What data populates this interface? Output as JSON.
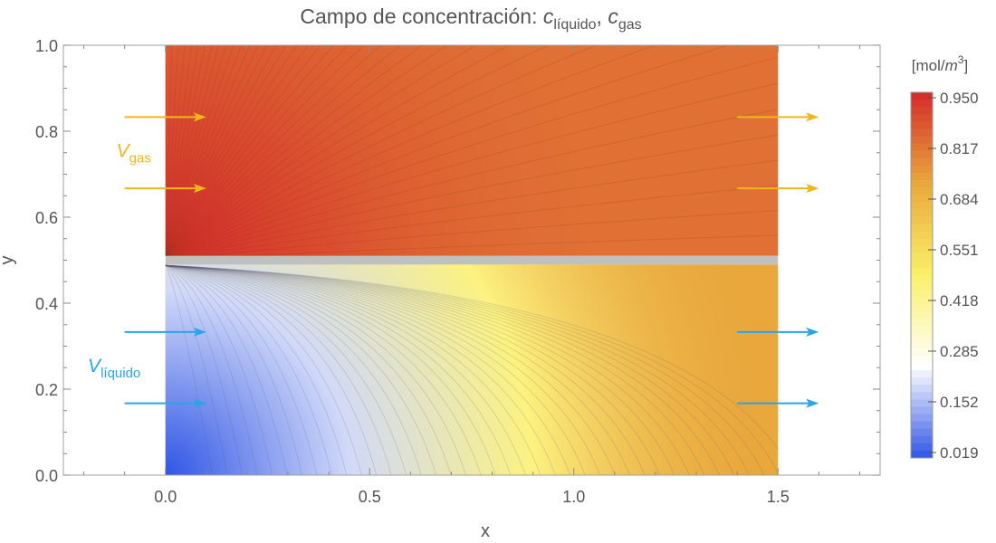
{
  "chart_data": {
    "type": "heatmap",
    "title": {
      "text": "Campo de concentración: ",
      "term1_main": "c",
      "term1_sub": "líquido",
      "separator": ", ",
      "term2_main": "c",
      "term2_sub": "gas"
    },
    "xlabel": "x",
    "ylabel": "y",
    "xlim": [
      -0.25,
      1.75
    ],
    "ylim": [
      0.0,
      1.0
    ],
    "x_ticks": [
      {
        "value": 0.0,
        "label": "0.0"
      },
      {
        "value": 0.5,
        "label": "0.5"
      },
      {
        "value": 1.0,
        "label": "1.0"
      },
      {
        "value": 1.5,
        "label": "1.5"
      }
    ],
    "y_ticks": [
      {
        "value": 0.0,
        "label": "0.0"
      },
      {
        "value": 0.2,
        "label": "0.2"
      },
      {
        "value": 0.4,
        "label": "0.4"
      },
      {
        "value": 0.6,
        "label": "0.6"
      },
      {
        "value": 0.8,
        "label": "0.8"
      },
      {
        "value": 1.0,
        "label": "1.0"
      }
    ],
    "domain": {
      "x": [
        0.0,
        1.5
      ],
      "y": [
        0.0,
        1.0
      ]
    },
    "membrane": {
      "y": [
        0.49,
        0.51
      ],
      "color": "#c0c0c0"
    },
    "regions": [
      {
        "name": "gas",
        "y_range": [
          0.51,
          1.0
        ],
        "min_value": 0.82,
        "max_value": 0.95
      },
      {
        "name": "liquid",
        "y_range": [
          0.0,
          0.49
        ],
        "min_value": 0.019,
        "max_value": 0.72
      }
    ],
    "colorbar": {
      "unit_main": "[mol/",
      "unit_m": "m",
      "unit_exp": "3",
      "unit_close": "]",
      "range": [
        0.019,
        0.95
      ],
      "ticks": [
        {
          "value": 0.95,
          "label": "0.950"
        },
        {
          "value": 0.817,
          "label": "0.817"
        },
        {
          "value": 0.684,
          "label": "0.684"
        },
        {
          "value": 0.551,
          "label": "0.551"
        },
        {
          "value": 0.418,
          "label": "0.418"
        },
        {
          "value": 0.285,
          "label": "0.285"
        },
        {
          "value": 0.152,
          "label": "0.152"
        },
        {
          "value": 0.019,
          "label": "0.019"
        }
      ],
      "colors": [
        "#2f55e6",
        "#ffffff",
        "#fbf06a",
        "#e9a83c",
        "#d42a2a"
      ]
    },
    "annotations": [
      {
        "name": "v-gas",
        "main": "V",
        "sub": "gas",
        "color": "#f3b51c",
        "x": -0.12,
        "y": 0.74
      },
      {
        "name": "v-liquid",
        "main": "V",
        "sub": "líquido",
        "color": "#2aa5ea",
        "x": -0.19,
        "y": 0.24
      }
    ],
    "arrows": [
      {
        "group": "gas",
        "color": "#f3b51c",
        "x_from": -0.1,
        "x_to": 0.1,
        "y": 0.833
      },
      {
        "group": "gas",
        "color": "#f3b51c",
        "x_from": -0.1,
        "x_to": 0.1,
        "y": 0.667
      },
      {
        "group": "gas",
        "color": "#f3b51c",
        "x_from": 1.4,
        "x_to": 1.6,
        "y": 0.833
      },
      {
        "group": "gas",
        "color": "#f3b51c",
        "x_from": 1.4,
        "x_to": 1.6,
        "y": 0.667
      },
      {
        "group": "liquid",
        "color": "#2aa5ea",
        "x_from": -0.1,
        "x_to": 0.1,
        "y": 0.333
      },
      {
        "group": "liquid",
        "color": "#2aa5ea",
        "x_from": -0.1,
        "x_to": 0.1,
        "y": 0.167
      },
      {
        "group": "liquid",
        "color": "#2aa5ea",
        "x_from": 1.4,
        "x_to": 1.6,
        "y": 0.333
      },
      {
        "group": "liquid",
        "color": "#2aa5ea",
        "x_from": 1.4,
        "x_to": 1.6,
        "y": 0.167
      }
    ]
  }
}
